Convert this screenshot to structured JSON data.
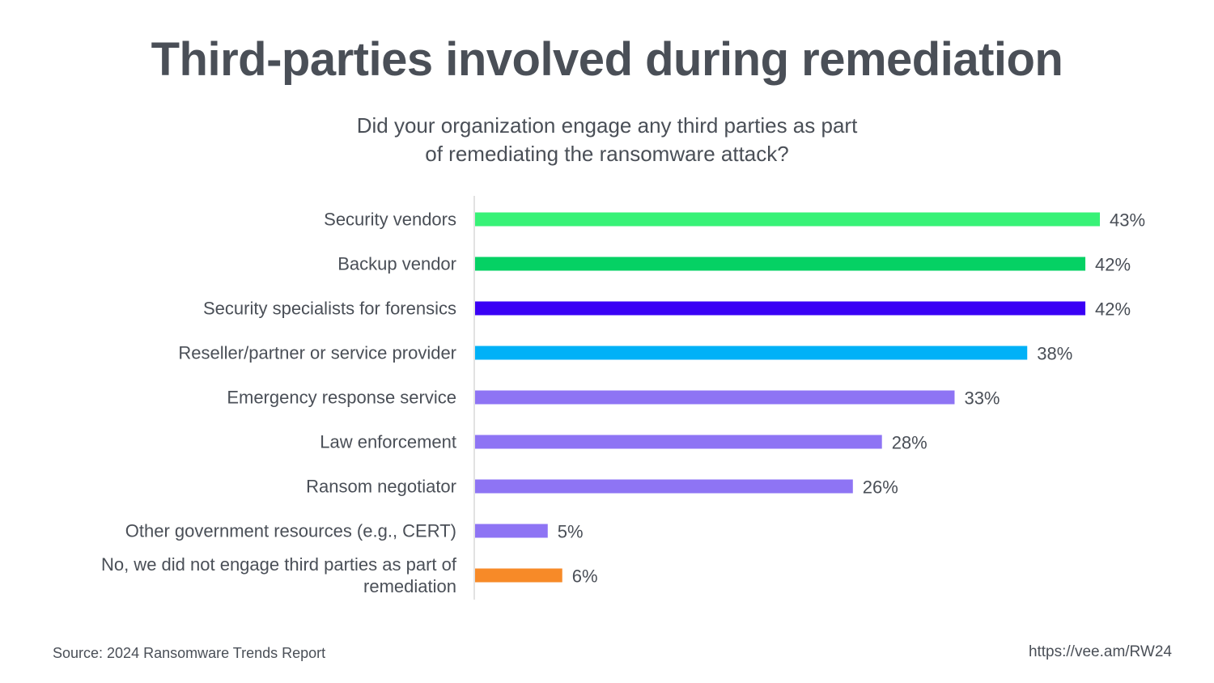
{
  "title": "Third-parties involved during remediation",
  "subtitle_lines": [
    "Did your organization engage any third parties as part",
    "of remediating the ransomware attack?"
  ],
  "chart_data": {
    "type": "bar",
    "orientation": "horizontal",
    "categories": [
      [
        "Security vendors"
      ],
      [
        "Backup vendor"
      ],
      [
        "Security specialists for forensics"
      ],
      [
        "Reseller/partner or service provider"
      ],
      [
        "Emergency response service"
      ],
      [
        "Law enforcement"
      ],
      [
        "Ransom negotiator"
      ],
      [
        "Other government resources (e.g., CERT)"
      ],
      [
        "No, we did not engage third parties as part of",
        "remediation"
      ]
    ],
    "values": [
      43,
      42,
      42,
      38,
      33,
      28,
      26,
      5,
      6
    ],
    "value_labels": [
      "43%",
      "42%",
      "42%",
      "38%",
      "33%",
      "28%",
      "26%",
      "5%",
      "6%"
    ],
    "colors": [
      "#38f277",
      "#05d164",
      "#3a00f5",
      "#00b1f7",
      "#8e74f4",
      "#8e74f4",
      "#8e74f4",
      "#8e74f4",
      "#f78a28"
    ],
    "xlim": [
      0,
      43
    ],
    "grid": false,
    "legend": "none"
  },
  "footer": {
    "source": "Source: 2024 Ransomware Trends Report",
    "url": "https://vee.am/RW24"
  }
}
